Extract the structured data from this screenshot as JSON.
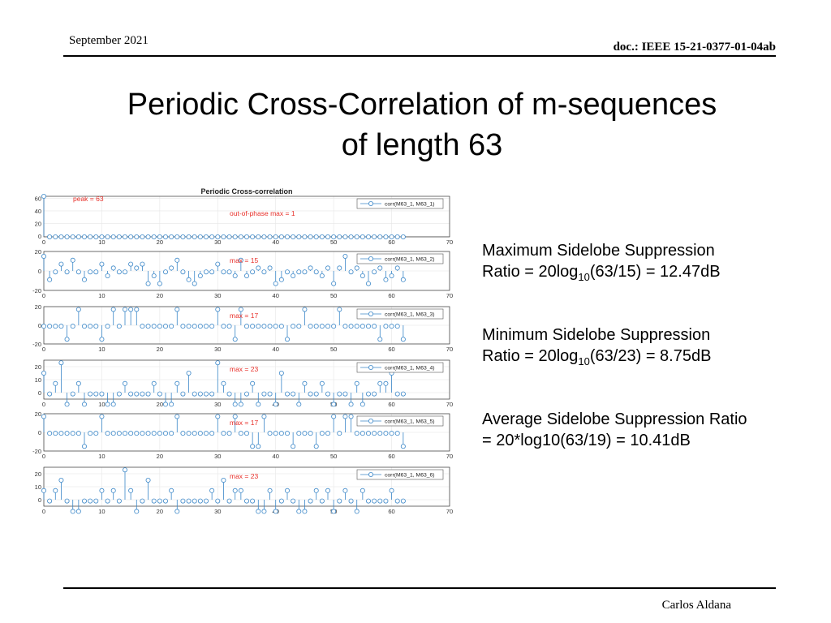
{
  "header": {
    "date": "September 2021",
    "doc": "doc.: IEEE 15-21-0377-01-04ab"
  },
  "title": {
    "line1": "Periodic Cross-Correlation of m-sequences",
    "line2": "of length 63"
  },
  "notes": {
    "max": {
      "line1": "Maximum Sidelobe Suppression",
      "pre": "Ratio = 20log",
      "sub": "10",
      "post": "(63/15) = 12.47dB"
    },
    "min": {
      "line1": "Minimum Sidelobe Suppression",
      "pre": "Ratio = 20log",
      "sub": "10",
      "post": "(63/23) = 8.75dB"
    },
    "avg": {
      "line1": "Average Sidelobe Suppression Ratio",
      "line2": "= 20*log10(63/19) = 10.41dB"
    }
  },
  "footer": {
    "author": "Carlos Aldana"
  },
  "chart_data": {
    "type": "stem",
    "title": "Periodic Cross-correlation",
    "xlim": [
      0,
      70
    ],
    "xticks": [
      0,
      10,
      20,
      30,
      40,
      50,
      60,
      70
    ],
    "colors": {
      "stem": "#3b87c8",
      "annotation": "#e8302a"
    },
    "subplots": [
      {
        "legend": "corr(M63_1, M63_1)",
        "annotations": [
          "peak = 63",
          "out-of-phase max = 1"
        ],
        "ylim": [
          -1,
          63
        ],
        "yticks": [
          0,
          20,
          40,
          60
        ],
        "values": [
          63,
          -1,
          -1,
          -1,
          -1,
          -1,
          -1,
          -1,
          -1,
          -1,
          -1,
          -1,
          -1,
          -1,
          -1,
          -1,
          -1,
          -1,
          -1,
          -1,
          -1,
          -1,
          -1,
          -1,
          -1,
          -1,
          -1,
          -1,
          -1,
          -1,
          -1,
          -1,
          -1,
          -1,
          -1,
          -1,
          -1,
          -1,
          -1,
          -1,
          -1,
          -1,
          -1,
          -1,
          -1,
          -1,
          -1,
          -1,
          -1,
          -1,
          -1,
          -1,
          -1,
          -1,
          -1,
          -1,
          -1,
          -1,
          -1,
          -1,
          -1,
          -1,
          -1
        ]
      },
      {
        "legend": "corr(M63_1, M63_2)",
        "annotations": [
          "max = 15"
        ],
        "ylim": [
          -20,
          20
        ],
        "yticks": [
          -20,
          0,
          20
        ],
        "values": [
          15,
          -9,
          -1,
          7,
          -1,
          11,
          -1,
          -9,
          -1,
          -1,
          7,
          -5,
          3,
          -1,
          -1,
          7,
          3,
          7,
          -13,
          -5,
          -13,
          -1,
          3,
          11,
          -1,
          -9,
          -13,
          -5,
          -1,
          -1,
          7,
          -1,
          -1,
          -5,
          11,
          -5,
          -1,
          3,
          -1,
          3,
          -13,
          -9,
          -1,
          -5,
          -1,
          -1,
          3,
          -1,
          -5,
          3,
          -13,
          3,
          15,
          -1,
          3,
          -5,
          -13,
          -1,
          3,
          -9,
          -5,
          3,
          -9
        ]
      },
      {
        "legend": "corr(M63_1, M63_3)",
        "annotations": [
          "max = 17"
        ],
        "ylim": [
          -20,
          20
        ],
        "yticks": [
          -20,
          0,
          20
        ],
        "values": [
          -1,
          -1,
          -1,
          -1,
          -15,
          -1,
          17,
          -1,
          -1,
          -1,
          -15,
          -1,
          17,
          -1,
          17,
          17,
          17,
          -1,
          -1,
          -1,
          -1,
          -1,
          -1,
          17,
          -1,
          -1,
          -1,
          -1,
          -1,
          -1,
          17,
          -1,
          -1,
          -15,
          17,
          -1,
          -1,
          -1,
          -1,
          -1,
          -1,
          -1,
          -15,
          -1,
          -1,
          17,
          -1,
          -1,
          -1,
          -1,
          -1,
          17,
          -1,
          -1,
          -1,
          -1,
          -1,
          -1,
          -15,
          -1,
          -1,
          -1,
          -15
        ]
      },
      {
        "legend": "corr(M63_1, M63_4)",
        "annotations": [
          "max = 23"
        ],
        "ylim": [
          -5,
          25
        ],
        "yticks": [
          0,
          10,
          20
        ],
        "values": [
          15,
          -1,
          7,
          23,
          -9,
          -1,
          7,
          -9,
          -1,
          -1,
          -1,
          -9,
          -9,
          -1,
          7,
          -1,
          -1,
          -1,
          -1,
          7,
          -1,
          -9,
          -9,
          7,
          -1,
          15,
          -1,
          -1,
          -1,
          -1,
          23,
          7,
          -1,
          -9,
          -9,
          -1,
          7,
          -9,
          -1,
          -1,
          -9,
          15,
          -1,
          -1,
          -9,
          7,
          -1,
          -1,
          7,
          -1,
          -9,
          -1,
          -1,
          -9,
          7,
          -9,
          -1,
          -1,
          7,
          7,
          15,
          -1,
          -1
        ]
      },
      {
        "legend": "corr(M63_1, M63_5)",
        "annotations": [
          "max = 17"
        ],
        "ylim": [
          -20,
          20
        ],
        "yticks": [
          -20,
          0,
          20
        ],
        "values": [
          17,
          -1,
          -1,
          -1,
          -1,
          -1,
          -1,
          -15,
          -1,
          -1,
          17,
          -1,
          -1,
          -1,
          -1,
          -1,
          -1,
          -1,
          -1,
          -1,
          -1,
          -1,
          -1,
          17,
          -1,
          -1,
          -1,
          -1,
          -1,
          -1,
          17,
          -1,
          -1,
          17,
          -1,
          -1,
          -15,
          -15,
          17,
          -1,
          -1,
          -1,
          -1,
          -15,
          -1,
          -1,
          -1,
          -15,
          -1,
          -1,
          17,
          -1,
          17,
          17,
          -1,
          -1,
          -1,
          -1,
          -1,
          -1,
          -1,
          -1,
          -15
        ]
      },
      {
        "legend": "corr(M63_1, M63_6)",
        "annotations": [
          "max = 23"
        ],
        "ylim": [
          -5,
          25
        ],
        "yticks": [
          0,
          10,
          20
        ],
        "values": [
          7,
          -1,
          7,
          15,
          -1,
          -9,
          -9,
          -1,
          -1,
          -1,
          7,
          -1,
          7,
          -1,
          23,
          7,
          -9,
          -1,
          15,
          -1,
          -1,
          -1,
          7,
          -9,
          -1,
          -1,
          -1,
          -1,
          -1,
          7,
          -1,
          15,
          -1,
          7,
          7,
          -1,
          -1,
          -9,
          -9,
          7,
          -9,
          -1,
          7,
          -1,
          -9,
          -9,
          -1,
          7,
          -1,
          7,
          -9,
          -1,
          7,
          -1,
          -9,
          7,
          -1,
          -1,
          -1,
          -1,
          7,
          -1,
          -1
        ]
      }
    ]
  }
}
